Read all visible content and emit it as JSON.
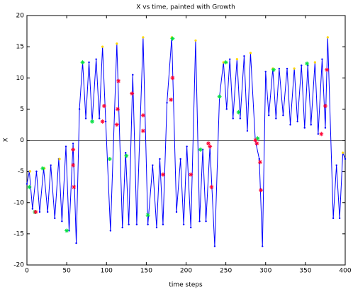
{
  "chart_data": {
    "type": "line",
    "title": "X vs time, painted with Growth",
    "xlabel": "time steps",
    "ylabel": "X",
    "xlim": [
      0,
      400
    ],
    "ylim": [
      -20,
      20
    ],
    "xticks": [
      0,
      50,
      100,
      150,
      200,
      250,
      300,
      350,
      400
    ],
    "yticks": [
      -20,
      -15,
      -10,
      -5,
      0,
      5,
      10,
      15,
      20
    ],
    "zero_line": true,
    "series": [
      {
        "color": "#0000ff",
        "marker": "dot",
        "x": [
          0,
          3,
          7,
          12,
          16,
          21,
          26,
          30,
          35,
          40,
          44,
          49,
          53,
          58,
          62,
          66,
          70,
          74,
          78,
          82,
          87,
          91,
          95,
          99,
          105,
          113,
          120,
          124,
          128,
          133,
          138,
          146,
          152,
          158,
          163,
          167,
          171,
          176,
          182,
          188,
          193,
          197,
          201,
          206,
          212,
          217,
          221,
          225,
          230,
          236,
          242,
          247,
          251,
          255,
          259,
          264,
          268,
          273,
          277,
          281,
          287,
          292,
          296,
          300,
          304,
          309,
          313,
          317,
          322,
          327,
          331,
          336,
          340,
          345,
          349,
          353,
          357,
          362,
          366,
          371,
          375,
          378,
          385,
          389,
          393,
          397,
          400
        ],
        "values": [
          -7,
          -5,
          -11,
          -5,
          -11.5,
          -4.5,
          -11.5,
          -4,
          -12.5,
          -3,
          -13,
          -1,
          -14.5,
          -0.5,
          -16.5,
          5,
          12.5,
          3.5,
          12.5,
          3,
          13,
          3.5,
          15,
          3,
          -14.5,
          15.5,
          -14,
          -2,
          -13.5,
          10.5,
          -13.5,
          16.5,
          -13.5,
          -4,
          -14,
          -3,
          -13.5,
          6,
          16.5,
          -11.5,
          -3,
          -13.5,
          -1,
          -14,
          16,
          -13,
          -1.5,
          -13,
          -1,
          -17,
          7,
          12.5,
          5,
          13,
          3.5,
          13,
          3.5,
          13.5,
          1.5,
          14,
          0,
          -3,
          -17,
          11,
          4,
          11.5,
          3.5,
          11.5,
          4,
          11.5,
          2.5,
          11.5,
          3,
          12,
          2,
          12,
          2.5,
          12.5,
          1,
          13,
          2,
          16.5,
          -12.5,
          -4,
          -12.5,
          -2,
          -3
        ]
      },
      {
        "color": "#ffd700",
        "marker": "dot",
        "x": [
          4,
          22,
          41,
          70,
          95,
          113,
          146,
          182,
          212,
          247,
          264,
          281,
          309,
          336,
          362,
          378,
          397
        ],
        "values": [
          -5,
          -4.5,
          -3,
          12.5,
          15,
          15.5,
          16.5,
          16.5,
          16,
          12.5,
          13,
          14,
          11.5,
          11.5,
          12.5,
          16.5,
          -2
        ]
      },
      {
        "color": "#00e040",
        "marker": "asterisk",
        "x": [
          3,
          10,
          20,
          50,
          70,
          82,
          104,
          125,
          152,
          183,
          218,
          242,
          250,
          266,
          290,
          310,
          352
        ],
        "values": [
          -7.5,
          -11.5,
          -4.5,
          -14.5,
          12.5,
          3,
          -3,
          -2.5,
          -12,
          16.3,
          -1.5,
          7,
          12.5,
          4.5,
          0.3,
          11.3,
          12.3
        ]
      },
      {
        "color": "#ff0033",
        "marker": "asterisk",
        "x": [
          11,
          58,
          58,
          59,
          95,
          97,
          113,
          114,
          115,
          132,
          146,
          146,
          171,
          181,
          183,
          206,
          228,
          230,
          232,
          287,
          289,
          293,
          294,
          370,
          375,
          377
        ],
        "values": [
          -11.5,
          -1.5,
          -4,
          -7.5,
          3,
          5.5,
          2.5,
          5,
          9.5,
          7.5,
          4,
          1.5,
          -5.5,
          6.5,
          10,
          -5.5,
          -0.5,
          -1,
          -7.5,
          0,
          -0.5,
          -3.5,
          -8,
          1,
          5.5,
          11.3
        ]
      }
    ]
  }
}
